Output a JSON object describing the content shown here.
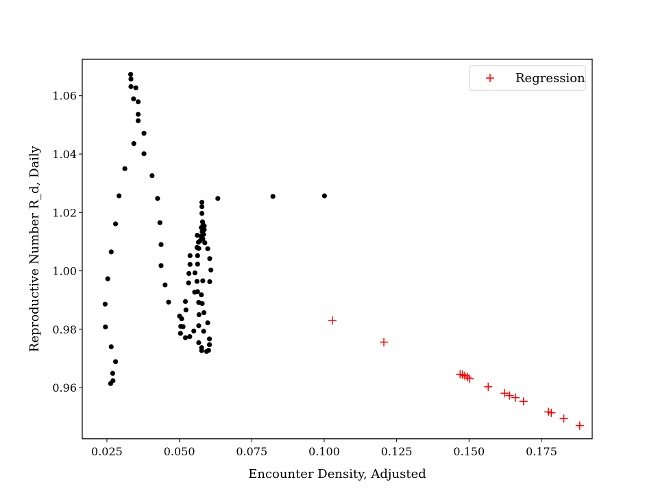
{
  "chart_data": {
    "type": "scatter",
    "title": "",
    "xlabel": "Encounter Density, Adjusted",
    "ylabel": "Reproductive Number R_d, Daily",
    "xlim": [
      0.0165,
      0.1925
    ],
    "ylim": [
      0.9425,
      1.0725
    ],
    "xticks": [
      0.025,
      0.05,
      0.075,
      0.1,
      0.125,
      0.15,
      0.175
    ],
    "xtick_labels": [
      "0.025",
      "0.050",
      "0.075",
      "0.100",
      "0.125",
      "0.150",
      "0.175"
    ],
    "yticks": [
      0.96,
      0.98,
      1.0,
      1.02,
      1.04,
      1.06
    ],
    "ytick_labels": [
      "0.96",
      "0.98",
      "1.00",
      "1.02",
      "1.04",
      "1.06"
    ],
    "grid": false,
    "legend_position": "top-right",
    "colors": {
      "observed": "#000000",
      "regression": "#ff0000",
      "axes": "#000000"
    },
    "series": [
      {
        "name": "",
        "marker": "circle",
        "color": "#000000",
        "points": [
          [
            0.0332,
            1.0673
          ],
          [
            0.0333,
            1.0657
          ],
          [
            0.0333,
            1.0631
          ],
          [
            0.035,
            1.0627
          ],
          [
            0.0342,
            1.0589
          ],
          [
            0.0358,
            1.0579
          ],
          [
            0.0358,
            1.0536
          ],
          [
            0.0358,
            1.0514
          ],
          [
            0.0378,
            1.0471
          ],
          [
            0.0343,
            1.0436
          ],
          [
            0.0378,
            1.0401
          ],
          [
            0.0312,
            1.035
          ],
          [
            0.0406,
            1.0326
          ],
          [
            0.0292,
            1.0257
          ],
          [
            0.0425,
            1.0248
          ],
          [
            0.0433,
            1.0165
          ],
          [
            0.028,
            1.0161
          ],
          [
            0.0437,
            1.009
          ],
          [
            0.0265,
            1.0065
          ],
          [
            0.0437,
            1.0018
          ],
          [
            0.0253,
            0.9973
          ],
          [
            0.0451,
            0.9952
          ],
          [
            0.0463,
            0.9893
          ],
          [
            0.0244,
            0.9886
          ],
          [
            0.0245,
            0.9808
          ],
          [
            0.0265,
            0.974
          ],
          [
            0.028,
            0.9689
          ],
          [
            0.027,
            0.9649
          ],
          [
            0.0271,
            0.9624
          ],
          [
            0.0263,
            0.9614
          ],
          [
            0.0578,
            1.0235
          ],
          [
            0.0578,
            1.022
          ],
          [
            0.0578,
            1.0197
          ],
          [
            0.058,
            1.0168
          ],
          [
            0.0582,
            1.0158
          ],
          [
            0.0586,
            1.0154
          ],
          [
            0.0576,
            1.0148
          ],
          [
            0.0586,
            1.0141
          ],
          [
            0.0579,
            1.0134
          ],
          [
            0.0584,
            1.0125
          ],
          [
            0.0562,
            1.0122
          ],
          [
            0.0575,
            1.0118
          ],
          [
            0.0581,
            1.011
          ],
          [
            0.0572,
            1.0103
          ],
          [
            0.0566,
            1.0098
          ],
          [
            0.0588,
            1.0096
          ],
          [
            0.0598,
            1.0076
          ],
          [
            0.0561,
            1.008
          ],
          [
            0.0567,
            1.0077
          ],
          [
            0.0537,
            1.0052
          ],
          [
            0.0563,
            1.0052
          ],
          [
            0.0605,
            1.0042
          ],
          [
            0.0537,
            1.0022
          ],
          [
            0.0563,
            1.0023
          ],
          [
            0.0609,
            1.0003
          ],
          [
            0.0554,
            0.9993
          ],
          [
            0.0533,
            0.9991
          ],
          [
            0.0561,
            0.9964
          ],
          [
            0.0532,
            0.9959
          ],
          [
            0.0581,
            0.9966
          ],
          [
            0.0605,
            0.9963
          ],
          [
            0.0553,
            0.9927
          ],
          [
            0.0563,
            0.9929
          ],
          [
            0.0576,
            0.9918
          ],
          [
            0.0521,
            0.9895
          ],
          [
            0.0567,
            0.9892
          ],
          [
            0.0579,
            0.9888
          ],
          [
            0.0523,
            0.9866
          ],
          [
            0.0585,
            0.9857
          ],
          [
            0.0568,
            0.985
          ],
          [
            0.0501,
            0.9845
          ],
          [
            0.0508,
            0.9836
          ],
          [
            0.0598,
            0.9822
          ],
          [
            0.0505,
            0.981
          ],
          [
            0.0513,
            0.9809
          ],
          [
            0.0567,
            0.9812
          ],
          [
            0.055,
            0.9794
          ],
          [
            0.0584,
            0.9793
          ],
          [
            0.0504,
            0.9786
          ],
          [
            0.0536,
            0.9775
          ],
          [
            0.0521,
            0.9771
          ],
          [
            0.0604,
            0.9767
          ],
          [
            0.0567,
            0.9754
          ],
          [
            0.0604,
            0.9747
          ],
          [
            0.0577,
            0.9737
          ],
          [
            0.0577,
            0.9727
          ],
          [
            0.0594,
            0.9724
          ],
          [
            0.0601,
            0.9728
          ],
          [
            0.0633,
            1.0248
          ],
          [
            0.0823,
            1.0255
          ],
          [
            0.1001,
            1.0257
          ]
        ]
      },
      {
        "name": "Regression",
        "marker": "plus",
        "color": "#ff0000",
        "points": [
          [
            0.1028,
            0.983
          ],
          [
            0.1206,
            0.9756
          ],
          [
            0.1469,
            0.9646
          ],
          [
            0.1477,
            0.9645
          ],
          [
            0.1485,
            0.9641
          ],
          [
            0.1495,
            0.9636
          ],
          [
            0.1502,
            0.9631
          ],
          [
            0.1566,
            0.9603
          ],
          [
            0.1623,
            0.9581
          ],
          [
            0.164,
            0.9573
          ],
          [
            0.166,
            0.9566
          ],
          [
            0.1688,
            0.9553
          ],
          [
            0.1774,
            0.9517
          ],
          [
            0.1784,
            0.9514
          ],
          [
            0.1827,
            0.9494
          ],
          [
            0.1882,
            0.947
          ]
        ]
      }
    ]
  }
}
